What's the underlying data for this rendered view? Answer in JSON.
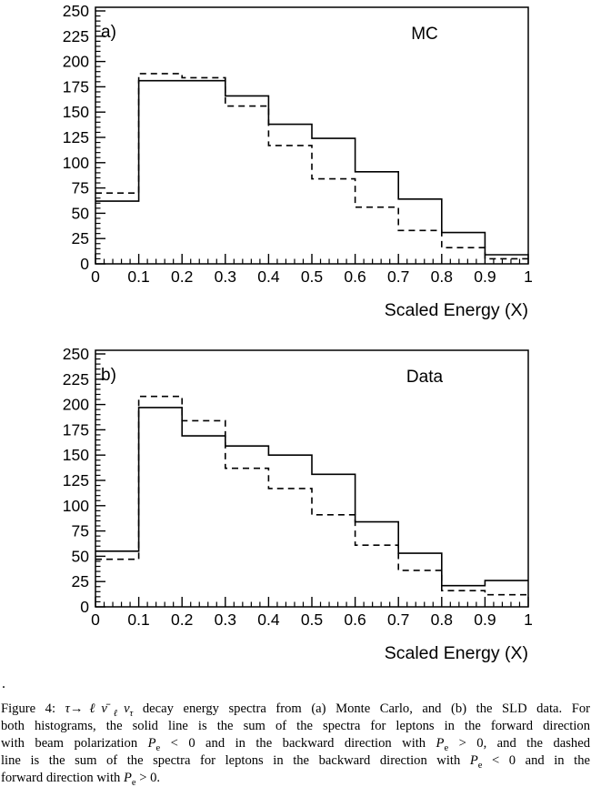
{
  "page": {
    "background": "#ffffff",
    "ink": "#000000"
  },
  "stray_period": ".",
  "chart_data": [
    {
      "type": "step-histogram",
      "panel_letter": "a)",
      "panel_title": "MC",
      "xlabel": "Scaled Energy (X)",
      "xlim": [
        0,
        1
      ],
      "ylim": [
        0,
        250
      ],
      "x_major_step": 0.1,
      "y_major_step": 25,
      "x_minor_divisions": 5,
      "y_minor_divisions": 5,
      "x_tick_labels": [
        "0",
        "0.1",
        "0.2",
        "0.3",
        "0.4",
        "0.5",
        "0.6",
        "0.7",
        "0.8",
        "0.9",
        "1"
      ],
      "y_tick_labels": [
        "0",
        "25",
        "50",
        "75",
        "100",
        "125",
        "150",
        "175",
        "200",
        "225",
        "250"
      ],
      "bin_edges": [
        0,
        0.1,
        0.2,
        0.3,
        0.4,
        0.5,
        0.6,
        0.7,
        0.8,
        0.9,
        1
      ],
      "series": [
        {
          "name": "solid: forward Pe<0 plus backward Pe>0",
          "style": "solid",
          "values": [
            62,
            181,
            181,
            166,
            138,
            124,
            91,
            64,
            31,
            9
          ]
        },
        {
          "name": "dashed: backward Pe<0 plus forward Pe>0",
          "style": "dashed",
          "values": [
            70,
            188,
            184,
            156,
            117,
            84,
            56,
            33,
            16,
            5
          ]
        }
      ]
    },
    {
      "type": "step-histogram",
      "panel_letter": "b)",
      "panel_title": "Data",
      "xlabel": "Scaled Energy (X)",
      "xlim": [
        0,
        1
      ],
      "ylim": [
        0,
        250
      ],
      "x_major_step": 0.1,
      "y_major_step": 25,
      "x_minor_divisions": 5,
      "y_minor_divisions": 5,
      "x_tick_labels": [
        "0",
        "0.1",
        "0.2",
        "0.3",
        "0.4",
        "0.5",
        "0.6",
        "0.7",
        "0.8",
        "0.9",
        "1"
      ],
      "y_tick_labels": [
        "0",
        "25",
        "50",
        "75",
        "100",
        "125",
        "150",
        "175",
        "200",
        "225",
        "250"
      ],
      "bin_edges": [
        0,
        0.1,
        0.2,
        0.3,
        0.4,
        0.5,
        0.6,
        0.7,
        0.8,
        0.9,
        1
      ],
      "series": [
        {
          "name": "solid: forward Pe<0 plus backward Pe>0",
          "style": "solid",
          "values": [
            55,
            197,
            169,
            159,
            150,
            131,
            84,
            53,
            21,
            26
          ]
        },
        {
          "name": "dashed: backward Pe<0 plus forward Pe>0",
          "style": "dashed",
          "values": [
            47,
            208,
            184,
            137,
            117,
            91,
            61,
            36,
            16,
            12
          ]
        }
      ]
    }
  ],
  "caption": {
    "lines": [
      {
        "segments": [
          {
            "t": "Figure 4: "
          },
          {
            "t": "τ",
            "i": true
          },
          {
            "t": "→"
          },
          {
            "t": "ℓν̄",
            "i": true
          },
          {
            "t": "ℓ",
            "i": true,
            "s": true
          },
          {
            "t": "ν",
            "i": true
          },
          {
            "t": "τ",
            "i": true,
            "s": true
          },
          {
            "t": " decay energy spectra from (a) Monte Carlo, and (b) the SLD data. For"
          }
        ]
      },
      {
        "segments": [
          {
            "t": "both histograms, the solid line is the sum of the spectra for leptons in the forward direction"
          }
        ]
      },
      {
        "segments": [
          {
            "t": "with beam polarization "
          },
          {
            "t": "P",
            "i": true
          },
          {
            "t": "e",
            "s": true
          },
          {
            "t": " < 0 and in the backward direction with "
          },
          {
            "t": "P",
            "i": true
          },
          {
            "t": "e",
            "s": true
          },
          {
            "t": " > 0, and the dashed"
          }
        ]
      },
      {
        "segments": [
          {
            "t": "line is the sum of the spectra for leptons in the backward direction with "
          },
          {
            "t": "P",
            "i": true
          },
          {
            "t": "e",
            "s": true
          },
          {
            "t": " < 0 and in the"
          }
        ]
      },
      {
        "segments": [
          {
            "t": "forward direction with "
          },
          {
            "t": "P",
            "i": true
          },
          {
            "t": "e",
            "s": true
          },
          {
            "t": " > 0."
          }
        ]
      }
    ]
  }
}
